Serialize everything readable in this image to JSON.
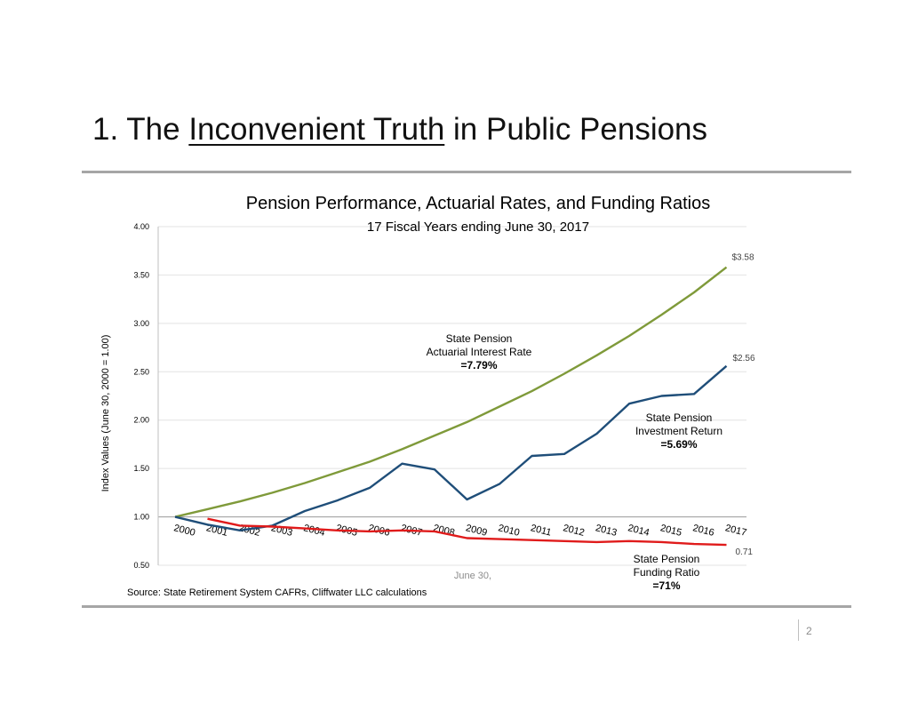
{
  "slide": {
    "title_prefix": "1. The ",
    "title_emphasis": "Inconvenient Truth",
    "title_suffix": " in Public Pensions",
    "page_number": "2",
    "source": "Source: State Retirement System CAFRs, Cliffwater LLC calculations"
  },
  "colors": {
    "actuarial": "#7f9a3a",
    "investment": "#1f4e79",
    "funding": "#e01b1b",
    "grid": "#e3e3e3",
    "axis": "#bfbfbf"
  },
  "chart_data": {
    "type": "line",
    "title": "Pension Performance, Actuarial Rates, and Funding Ratios",
    "subtitle": "17 Fiscal Years ending June 30, 2017",
    "xlabel": "June 30,",
    "ylabel": "Index Values (June 30, 2000 = 1.00)",
    "ylim": [
      0.5,
      4.0
    ],
    "yticks": [
      "0.50",
      "1.00",
      "1.50",
      "2.00",
      "2.50",
      "3.00",
      "3.50",
      "4.00"
    ],
    "categories": [
      "2000",
      "2001",
      "2002",
      "2003",
      "2004",
      "2005",
      "2006",
      "2007",
      "2008",
      "2009",
      "2010",
      "2011",
      "2012",
      "2013",
      "2014",
      "2015",
      "2016",
      "2017"
    ],
    "grid": true,
    "series": [
      {
        "key": "actuarial",
        "values": [
          1.0,
          1.08,
          1.16,
          1.25,
          1.35,
          1.46,
          1.57,
          1.7,
          1.84,
          1.98,
          2.14,
          2.3,
          2.48,
          2.67,
          2.87,
          3.09,
          3.32,
          3.58
        ],
        "label_lines": [
          "State Pension",
          "Actuarial Interest Rate",
          "=7.79%"
        ],
        "end_label": "$3.58"
      },
      {
        "key": "investment",
        "values": [
          1.0,
          0.92,
          0.86,
          0.91,
          1.06,
          1.17,
          1.3,
          1.55,
          1.49,
          1.18,
          1.34,
          1.63,
          1.65,
          1.86,
          2.17,
          2.25,
          2.27,
          2.56
        ],
        "label_lines": [
          "State Pension",
          "Investment Return",
          "=5.69%"
        ],
        "end_label": "$2.56"
      },
      {
        "key": "funding",
        "values": [
          null,
          0.98,
          0.91,
          0.9,
          0.88,
          0.86,
          0.85,
          0.86,
          0.85,
          0.78,
          0.77,
          0.76,
          0.75,
          0.74,
          0.75,
          0.74,
          0.72,
          0.71
        ],
        "label_lines": [
          "State Pension",
          "Funding Ratio",
          "=71%"
        ],
        "end_label": "0.71"
      }
    ]
  }
}
